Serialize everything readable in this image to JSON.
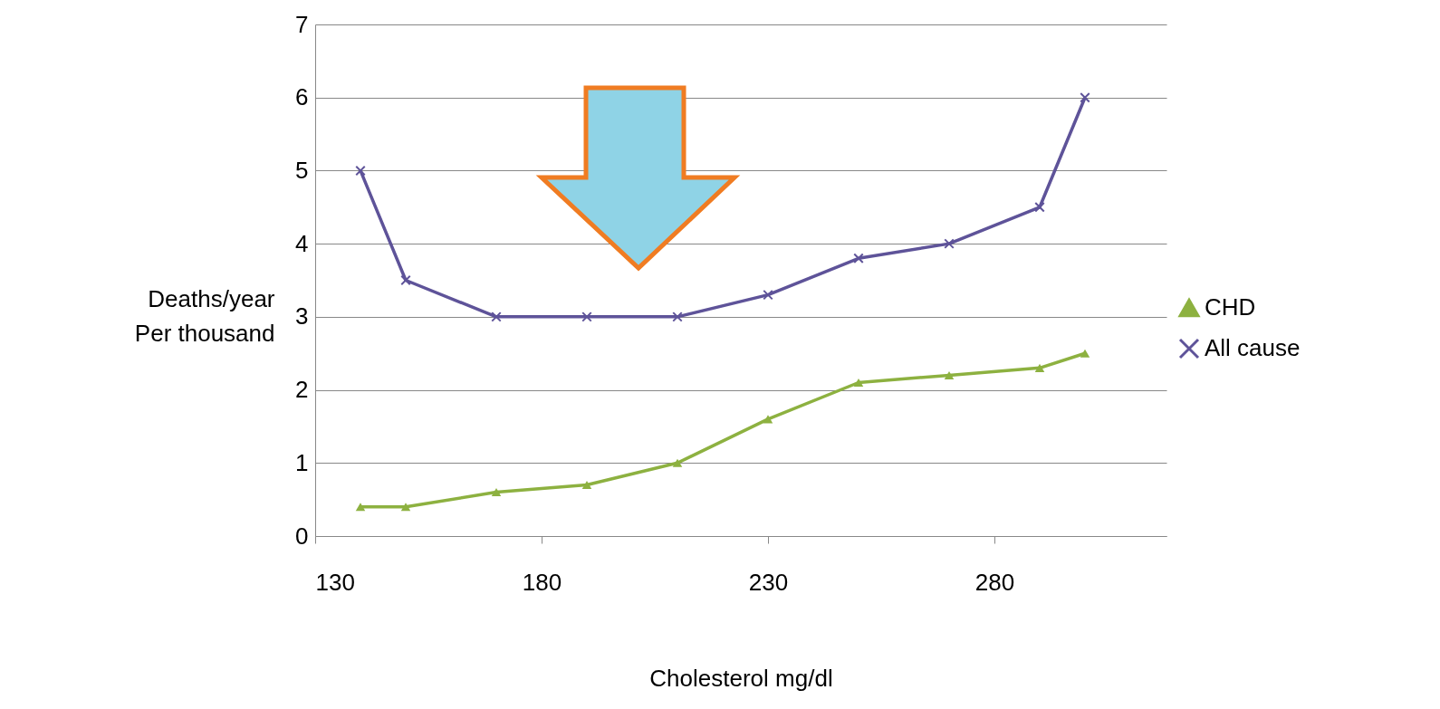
{
  "chart_data": {
    "type": "line",
    "xlabel": "Cholesterol mg/dl",
    "ylabel": "Deaths/year\nPer thousand",
    "x": [
      140,
      150,
      170,
      190,
      210,
      230,
      250,
      270,
      290,
      300
    ],
    "series": [
      {
        "name": "CHD",
        "color": "#8db140",
        "marker": "triangle",
        "values": [
          0.4,
          0.4,
          0.6,
          0.7,
          1.0,
          1.6,
          2.1,
          2.2,
          2.3,
          2.5
        ]
      },
      {
        "name": "All cause",
        "color": "#5e5399",
        "marker": "cross",
        "values": [
          5,
          3.5,
          3,
          3,
          3,
          3.3,
          3.8,
          4,
          4.5,
          6
        ]
      }
    ],
    "xlim": [
      130,
      318
    ],
    "xticks": [
      130,
      180,
      230,
      280
    ],
    "ylim": [
      0,
      7
    ],
    "yticks": [
      0,
      1,
      2,
      3,
      4,
      5,
      6,
      7
    ],
    "grid": "y",
    "legend": "right"
  }
}
